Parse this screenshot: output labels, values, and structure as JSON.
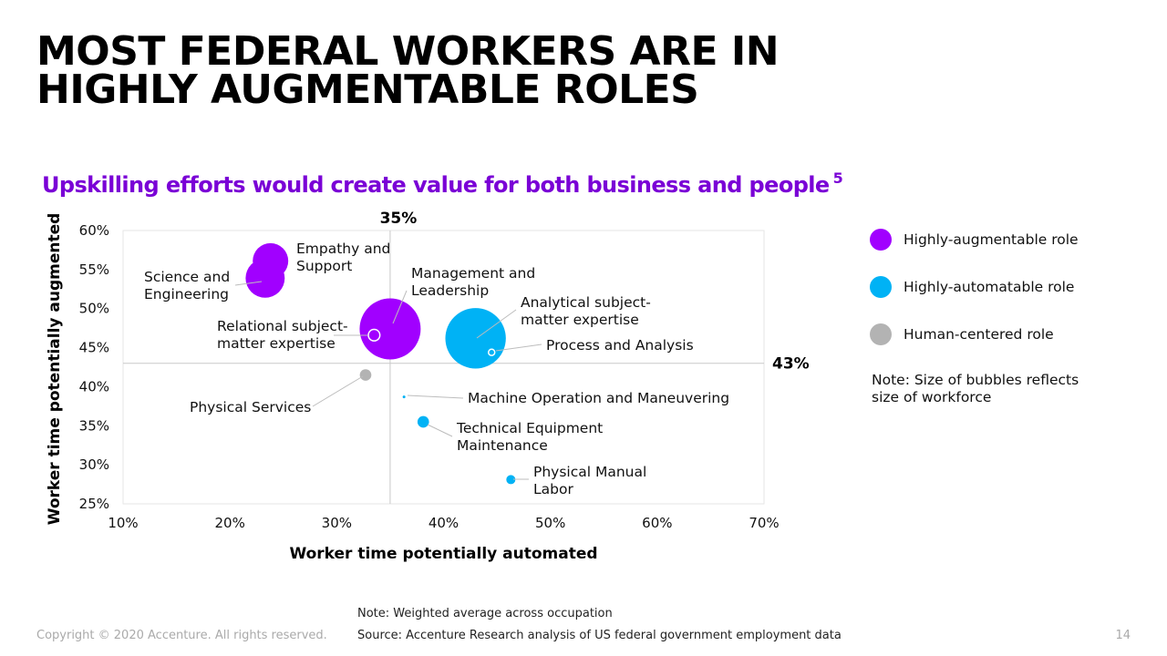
{
  "slide": {
    "title_line1": "MOST FEDERAL WORKERS ARE IN",
    "title_line2": "HIGHLY AUGMENTABLE ROLES",
    "subtitle": "Upskilling efforts would create value for both business and people",
    "subtitle_ref": "5",
    "size_note": "Note: Size of bubbles reflects size of workforce",
    "footnote_note": "Note: Weighted average across occupation",
    "footnote_source": "Source: Accenture Research analysis of US federal government employment data",
    "copyright": "Copyright © 2020 Accenture. All rights reserved.",
    "page_number": "14"
  },
  "legend": [
    {
      "label": "Highly-augmentable role",
      "color": "#a100ff"
    },
    {
      "label": "Highly-automatable role",
      "color": "#00b2f5"
    },
    {
      "label": "Human-centered role",
      "color": "#b3b3b3"
    }
  ],
  "chart_data": {
    "type": "scatter",
    "subtype": "bubble",
    "xlabel": "Worker time potentially automated",
    "ylabel": "Worker time potentially augmented",
    "xlim": [
      0.1,
      0.7
    ],
    "ylim": [
      0.25,
      0.6
    ],
    "x_ticks": [
      0.1,
      0.2,
      0.3,
      0.4,
      0.5,
      0.6,
      0.7
    ],
    "x_tick_labels": [
      "10%",
      "20%",
      "30%",
      "40%",
      "50%",
      "60%",
      "70%"
    ],
    "y_ticks": [
      0.25,
      0.3,
      0.35,
      0.4,
      0.45,
      0.5,
      0.55,
      0.6
    ],
    "y_tick_labels": [
      "25%",
      "30%",
      "35%",
      "40%",
      "45%",
      "50%",
      "55%",
      "60%"
    ],
    "grid": false,
    "reference_lines": {
      "vertical": {
        "value": 0.35,
        "label": "35%"
      },
      "horizontal": {
        "value": 0.43,
        "label": "43%"
      }
    },
    "legend_position": "right",
    "series": [
      {
        "name": "Highly-augmentable role",
        "color": "#a100ff",
        "points": [
          {
            "label": "Empathy and Support",
            "x": 0.238,
            "y": 0.561,
            "size": 380
          },
          {
            "label": "Science and Engineering",
            "x": 0.233,
            "y": 0.539,
            "size": 460
          },
          {
            "label": "Management and Leadership",
            "x": 0.35,
            "y": 0.474,
            "size": 1120
          },
          {
            "label": "Relational subject-matter expertise",
            "x": 0.335,
            "y": 0.466,
            "size": 40
          }
        ]
      },
      {
        "name": "Highly-automatable role",
        "color": "#00b2f5",
        "points": [
          {
            "label": "Analytical subject-matter expertise",
            "x": 0.43,
            "y": 0.462,
            "size": 1100
          },
          {
            "label": "Process and Analysis",
            "x": 0.445,
            "y": 0.444,
            "size": 12
          },
          {
            "label": "Machine Operation and Maneuvering",
            "x": 0.363,
            "y": 0.387,
            "size": 1
          },
          {
            "label": "Technical Equipment Maintenance",
            "x": 0.381,
            "y": 0.355,
            "size": 40
          },
          {
            "label": "Physical Manual Labor",
            "x": 0.463,
            "y": 0.281,
            "size": 25
          }
        ]
      },
      {
        "name": "Human-centered role",
        "color": "#b3b3b3",
        "points": [
          {
            "label": "Physical Services",
            "x": 0.327,
            "y": 0.415,
            "size": 40
          }
        ]
      }
    ]
  }
}
